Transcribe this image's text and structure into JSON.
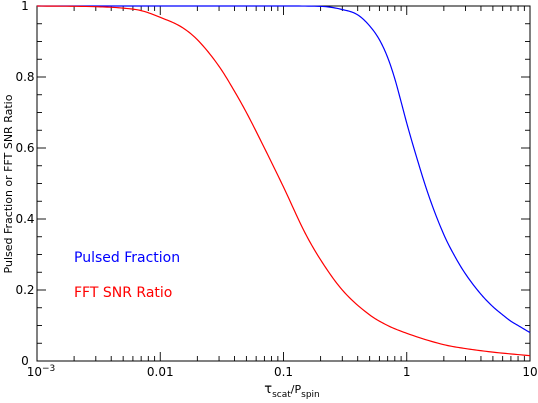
{
  "chart_data": {
    "type": "line",
    "title": "",
    "xlabel": {
      "main": "τ",
      "sub1": "scat",
      "mid": "/P",
      "sub2": "spin"
    },
    "ylabel": "Pulsed Fraction or FFT SNR Ratio",
    "xscale": "log",
    "xlim": [
      0.001,
      10
    ],
    "ylim": [
      0,
      1
    ],
    "xticks": [
      {
        "value": 0.001,
        "base": "10",
        "exp": "−3"
      },
      {
        "value": 0.01,
        "label": "0.01"
      },
      {
        "value": 0.1,
        "label": "0.1"
      },
      {
        "value": 1,
        "label": "1"
      },
      {
        "value": 10,
        "label": "10"
      }
    ],
    "yticks": [
      {
        "value": 0,
        "label": "0"
      },
      {
        "value": 0.2,
        "label": "0.2"
      },
      {
        "value": 0.4,
        "label": "0.4"
      },
      {
        "value": 0.6,
        "label": "0.6"
      },
      {
        "value": 0.8,
        "label": "0.8"
      },
      {
        "value": 1,
        "label": "1"
      }
    ],
    "grid": false,
    "legend_position": "left-middle",
    "series": [
      {
        "name": "Pulsed Fraction",
        "color": "#0000ff",
        "x": [
          0.001,
          0.01,
          0.1,
          0.2,
          0.3,
          0.4,
          0.5,
          0.6,
          0.7,
          0.8,
          0.9,
          1.0,
          1.2,
          1.5,
          2,
          2.5,
          3,
          4,
          5,
          6,
          7,
          8,
          10
        ],
        "y": [
          1.0,
          1.0,
          1.0,
          0.999,
          0.99,
          0.975,
          0.944,
          0.905,
          0.855,
          0.795,
          0.73,
          0.67,
          0.575,
          0.468,
          0.356,
          0.29,
          0.245,
          0.188,
          0.153,
          0.13,
          0.112,
          0.1,
          0.08
        ]
      },
      {
        "name": "FFT SNR Ratio",
        "color": "#ff0000",
        "x": [
          0.001,
          0.003,
          0.005,
          0.007,
          0.01,
          0.015,
          0.02,
          0.03,
          0.04,
          0.05,
          0.07,
          0.1,
          0.15,
          0.2,
          0.3,
          0.5,
          0.7,
          1,
          2,
          3,
          5,
          10
        ],
        "y": [
          1.0,
          0.998,
          0.994,
          0.987,
          0.968,
          0.94,
          0.905,
          0.83,
          0.76,
          0.7,
          0.6,
          0.49,
          0.36,
          0.285,
          0.2,
          0.13,
          0.1,
          0.078,
          0.046,
          0.035,
          0.025,
          0.015
        ]
      }
    ]
  }
}
